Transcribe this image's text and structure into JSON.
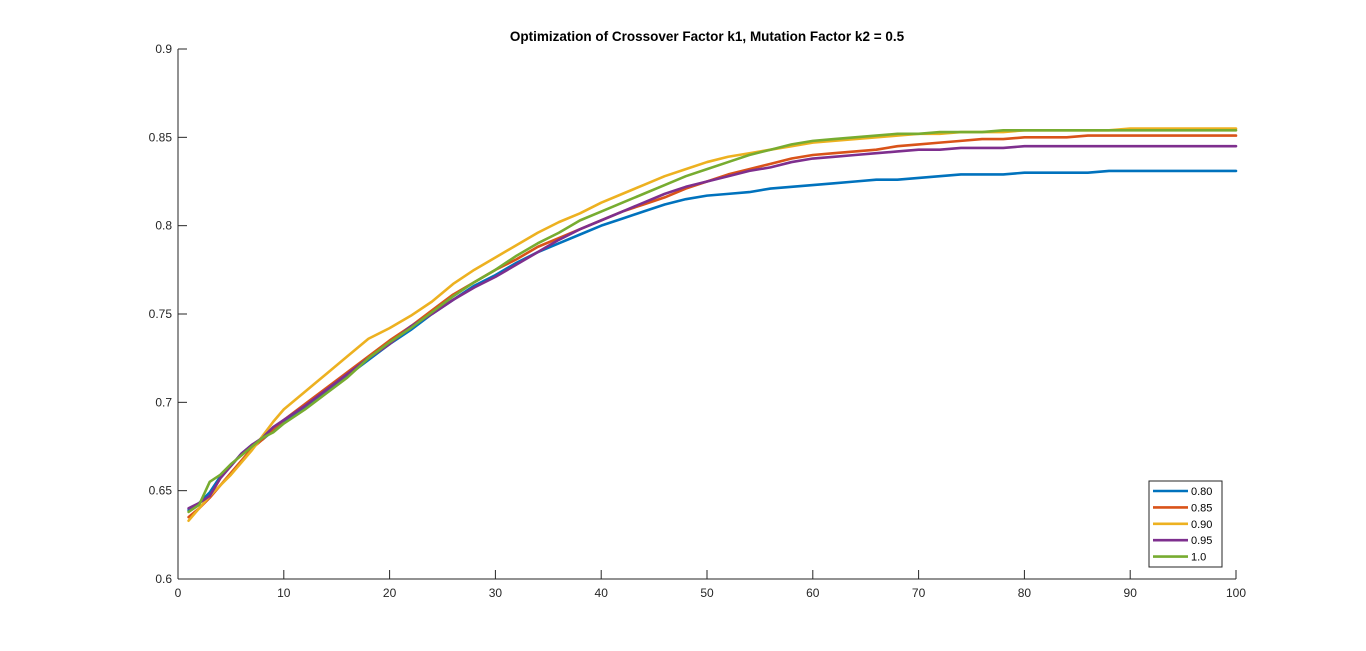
{
  "chart_data": {
    "type": "line",
    "title": "Optimization of Crossover Factor k1, Mutation Factor k2 = 0.5",
    "xlabel": "",
    "ylabel": "",
    "xlim": [
      0,
      100
    ],
    "ylim": [
      0.6,
      0.9
    ],
    "xticks": [
      0,
      10,
      20,
      30,
      40,
      50,
      60,
      70,
      80,
      90,
      100
    ],
    "xtick_labels": [
      "0",
      "10",
      "20",
      "30",
      "40",
      "50",
      "60",
      "70",
      "80",
      "90",
      "100"
    ],
    "yticks": [
      0.6,
      0.65,
      0.7,
      0.75,
      0.8,
      0.85,
      0.9
    ],
    "ytick_labels": [
      "0.6",
      "0.65",
      "0.7",
      "0.75",
      "0.8",
      "0.85",
      "0.9"
    ],
    "grid": false,
    "legend_position": "bottom-right",
    "x": [
      1,
      2,
      3,
      4,
      5,
      6,
      7,
      8,
      9,
      10,
      12,
      14,
      16,
      18,
      20,
      22,
      24,
      26,
      28,
      30,
      32,
      34,
      36,
      38,
      40,
      42,
      44,
      46,
      48,
      50,
      52,
      54,
      56,
      58,
      60,
      62,
      64,
      66,
      68,
      70,
      72,
      74,
      76,
      78,
      80,
      82,
      84,
      86,
      88,
      90,
      92,
      94,
      96,
      98,
      100
    ],
    "series": [
      {
        "name": "0.80",
        "color": "#0072BD",
        "values": [
          0.639,
          0.643,
          0.649,
          0.658,
          0.664,
          0.671,
          0.676,
          0.679,
          0.684,
          0.689,
          0.697,
          0.706,
          0.715,
          0.724,
          0.733,
          0.741,
          0.75,
          0.758,
          0.766,
          0.772,
          0.779,
          0.785,
          0.79,
          0.795,
          0.8,
          0.804,
          0.808,
          0.812,
          0.815,
          0.817,
          0.818,
          0.819,
          0.821,
          0.822,
          0.823,
          0.824,
          0.825,
          0.826,
          0.826,
          0.827,
          0.828,
          0.829,
          0.829,
          0.829,
          0.83,
          0.83,
          0.83,
          0.83,
          0.831,
          0.831,
          0.831,
          0.831,
          0.831,
          0.831,
          0.831
        ]
      },
      {
        "name": "0.85",
        "color": "#D95319",
        "values": [
          0.635,
          0.64,
          0.646,
          0.653,
          0.66,
          0.667,
          0.674,
          0.679,
          0.685,
          0.69,
          0.699,
          0.708,
          0.717,
          0.726,
          0.735,
          0.743,
          0.752,
          0.761,
          0.768,
          0.775,
          0.781,
          0.788,
          0.793,
          0.798,
          0.803,
          0.808,
          0.812,
          0.816,
          0.821,
          0.825,
          0.829,
          0.832,
          0.835,
          0.838,
          0.84,
          0.841,
          0.842,
          0.843,
          0.845,
          0.846,
          0.847,
          0.848,
          0.849,
          0.849,
          0.85,
          0.85,
          0.85,
          0.851,
          0.851,
          0.851,
          0.851,
          0.851,
          0.851,
          0.851,
          0.851
        ]
      },
      {
        "name": "0.90",
        "color": "#EDB120",
        "values": [
          0.633,
          0.64,
          0.647,
          0.653,
          0.659,
          0.666,
          0.673,
          0.681,
          0.689,
          0.696,
          0.706,
          0.716,
          0.726,
          0.736,
          0.742,
          0.749,
          0.757,
          0.767,
          0.775,
          0.782,
          0.789,
          0.796,
          0.802,
          0.807,
          0.813,
          0.818,
          0.823,
          0.828,
          0.832,
          0.836,
          0.839,
          0.841,
          0.843,
          0.845,
          0.847,
          0.848,
          0.849,
          0.85,
          0.851,
          0.852,
          0.852,
          0.853,
          0.853,
          0.853,
          0.854,
          0.854,
          0.854,
          0.854,
          0.854,
          0.855,
          0.855,
          0.855,
          0.855,
          0.855,
          0.855
        ]
      },
      {
        "name": "0.95",
        "color": "#7E2F8E",
        "values": [
          0.64,
          0.643,
          0.647,
          0.657,
          0.664,
          0.671,
          0.676,
          0.68,
          0.686,
          0.69,
          0.698,
          0.707,
          0.716,
          0.725,
          0.733,
          0.743,
          0.75,
          0.758,
          0.765,
          0.771,
          0.778,
          0.785,
          0.792,
          0.798,
          0.803,
          0.808,
          0.813,
          0.818,
          0.822,
          0.825,
          0.828,
          0.831,
          0.833,
          0.836,
          0.838,
          0.839,
          0.84,
          0.841,
          0.842,
          0.843,
          0.843,
          0.844,
          0.844,
          0.844,
          0.845,
          0.845,
          0.845,
          0.845,
          0.845,
          0.845,
          0.845,
          0.845,
          0.845,
          0.845,
          0.845
        ]
      },
      {
        "name": "1.0",
        "color": "#77AC30",
        "values": [
          0.638,
          0.642,
          0.655,
          0.659,
          0.665,
          0.67,
          0.675,
          0.68,
          0.683,
          0.688,
          0.696,
          0.705,
          0.714,
          0.725,
          0.734,
          0.742,
          0.751,
          0.76,
          0.768,
          0.775,
          0.783,
          0.79,
          0.796,
          0.803,
          0.808,
          0.813,
          0.818,
          0.823,
          0.828,
          0.832,
          0.836,
          0.84,
          0.843,
          0.846,
          0.848,
          0.849,
          0.85,
          0.851,
          0.852,
          0.852,
          0.853,
          0.853,
          0.853,
          0.854,
          0.854,
          0.854,
          0.854,
          0.854,
          0.854,
          0.854,
          0.854,
          0.854,
          0.854,
          0.854,
          0.854
        ]
      }
    ]
  }
}
